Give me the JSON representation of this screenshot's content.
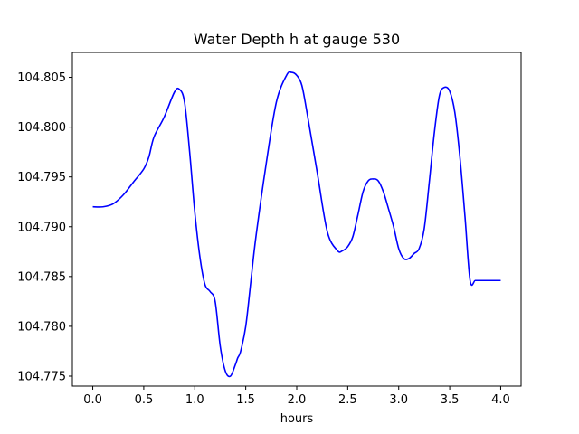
{
  "chart_data": {
    "type": "line",
    "title": "Water Depth h at gauge 530",
    "xlabel": "hours",
    "ylabel": "",
    "xlim": [
      -0.2,
      4.2
    ],
    "ylim": [
      104.774,
      104.8075
    ],
    "xticks": [
      0.0,
      0.5,
      1.0,
      1.5,
      2.0,
      2.5,
      3.0,
      3.5,
      4.0
    ],
    "xtick_labels": [
      "0.0",
      "0.5",
      "1.0",
      "1.5",
      "2.0",
      "2.5",
      "3.0",
      "3.5",
      "4.0"
    ],
    "yticks": [
      104.775,
      104.78,
      104.785,
      104.79,
      104.795,
      104.8,
      104.805
    ],
    "ytick_labels": [
      "104.775",
      "104.780",
      "104.785",
      "104.790",
      "104.795",
      "104.800",
      "104.805"
    ],
    "grid": false,
    "series": [
      {
        "name": "",
        "color": "#0000ff",
        "x": [
          0.0,
          0.1,
          0.2,
          0.3,
          0.4,
          0.5,
          0.55,
          0.6,
          0.7,
          0.8,
          0.85,
          0.9,
          0.95,
          1.0,
          1.05,
          1.1,
          1.15,
          1.2,
          1.25,
          1.3,
          1.35,
          1.4,
          1.42,
          1.45,
          1.5,
          1.55,
          1.6,
          1.7,
          1.8,
          1.9,
          1.95,
          2.0,
          2.05,
          2.1,
          2.2,
          2.3,
          2.4,
          2.45,
          2.5,
          2.55,
          2.6,
          2.65,
          2.7,
          2.75,
          2.8,
          2.85,
          2.9,
          2.95,
          3.0,
          3.05,
          3.1,
          3.15,
          3.2,
          3.25,
          3.3,
          3.35,
          3.4,
          3.45,
          3.5,
          3.55,
          3.6,
          3.65,
          3.7,
          3.75,
          3.8,
          3.85,
          3.9,
          3.95,
          4.0
        ],
        "y": [
          104.792,
          104.792,
          104.7923,
          104.7932,
          104.7945,
          104.7958,
          104.797,
          104.799,
          104.801,
          104.8035,
          104.8038,
          104.8025,
          104.7975,
          104.7915,
          104.787,
          104.7842,
          104.7835,
          104.7825,
          104.778,
          104.7755,
          104.775,
          104.7762,
          104.7768,
          104.7775,
          104.78,
          104.7845,
          104.789,
          104.7963,
          104.8025,
          104.8052,
          104.8055,
          104.8052,
          104.8042,
          104.8015,
          104.7955,
          104.7895,
          104.7876,
          104.7876,
          104.788,
          104.789,
          104.7912,
          104.7935,
          104.7946,
          104.7948,
          104.7946,
          104.7935,
          104.7918,
          104.79,
          104.7878,
          104.7868,
          104.7868,
          104.7873,
          104.7878,
          104.7898,
          104.7945,
          104.7995,
          104.8032,
          104.804,
          104.8036,
          104.8015,
          104.797,
          104.791,
          104.7846,
          104.7846,
          104.7846,
          104.7846,
          104.7846,
          104.7846,
          104.7846
        ]
      }
    ]
  }
}
